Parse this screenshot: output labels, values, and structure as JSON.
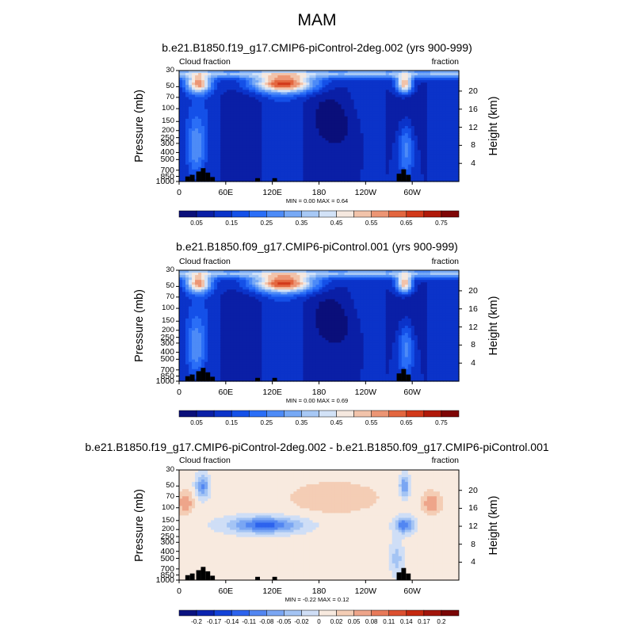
{
  "figure": {
    "title": "MAM"
  },
  "chart_data": [
    {
      "type": "heatmap",
      "title": "b.e21.B1850.f19_g17.CMIP6-piControl-2deg.002 (yrs 900-999)",
      "left_label": "Cloud fraction",
      "right_label": "fraction",
      "ylabel": "Pressure (mb)",
      "ylabel_right": "Height (km)",
      "stats": "MIN =   0.00  MAX =   0.64",
      "x_ticks": [
        "0",
        "60E",
        "120E",
        "180",
        "120W",
        "60W"
      ],
      "y_ticks": [
        "1000",
        "850",
        "700",
        "500",
        "400",
        "300",
        "250",
        "200",
        "150",
        "100",
        "70",
        "50",
        "30"
      ],
      "y_ticks_right": [
        "4",
        "8",
        "12",
        "16",
        "20"
      ],
      "colorbar": {
        "labels": [
          "0.05",
          "0.15",
          "0.25",
          "0.35",
          "0.45",
          "0.55",
          "0.65",
          "0.75"
        ],
        "range": [
          0,
          0.8
        ],
        "nlevels": 16
      }
    },
    {
      "type": "heatmap",
      "title": "b.e21.B1850.f09_g17.CMIP6-piControl.001 (yrs 900-999)",
      "left_label": "Cloud fraction",
      "right_label": "fraction",
      "ylabel": "Pressure (mb)",
      "ylabel_right": "Height (km)",
      "stats": "MIN =   0.00  MAX =   0.69",
      "x_ticks": [
        "0",
        "60E",
        "120E",
        "180",
        "120W",
        "60W"
      ],
      "y_ticks": [
        "1000",
        "850",
        "700",
        "500",
        "400",
        "300",
        "250",
        "200",
        "150",
        "100",
        "70",
        "50",
        "30"
      ],
      "y_ticks_right": [
        "4",
        "8",
        "12",
        "16",
        "20"
      ],
      "colorbar": {
        "labels": [
          "0.05",
          "0.15",
          "0.25",
          "0.35",
          "0.45",
          "0.55",
          "0.65",
          "0.75"
        ],
        "range": [
          0,
          0.8
        ],
        "nlevels": 16
      }
    },
    {
      "type": "heatmap",
      "title": "b.e21.B1850.f19_g17.CMIP6-piControl-2deg.002 - b.e21.B1850.f09_g17.CMIP6-piControl.001",
      "left_label": "Cloud fraction",
      "right_label": "fraction",
      "ylabel": "Pressure (mb)",
      "ylabel_right": "Height (km)",
      "stats": "MIN =  -0.22  MAX =   0.12",
      "x_ticks": [
        "0",
        "60E",
        "120E",
        "180",
        "120W",
        "60W"
      ],
      "y_ticks": [
        "1000",
        "850",
        "700",
        "500",
        "400",
        "300",
        "250",
        "200",
        "150",
        "100",
        "70",
        "50",
        "30"
      ],
      "y_ticks_right": [
        "4",
        "8",
        "12",
        "16",
        "20"
      ],
      "colorbar": {
        "labels": [
          "-0.2",
          "-0.17",
          "-0.14",
          "-0.11",
          "-0.08",
          "-0.05",
          "-0.02",
          "0",
          "0.02",
          "0.05",
          "0.08",
          "0.11",
          "0.14",
          "0.17",
          "0.2"
        ],
        "range": [
          -0.215,
          0.215
        ],
        "nlevels": 16
      }
    }
  ]
}
